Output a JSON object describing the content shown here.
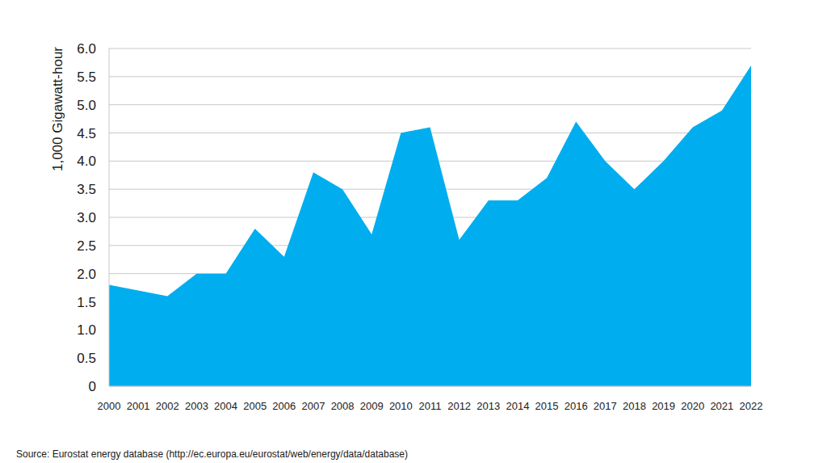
{
  "chart_data": {
    "type": "area",
    "y_label": "1,000 Gigawatt-hour",
    "source": "Source: Eurostat energy database (http://ec.europa.eu/eurostat/web/energy/data/database)",
    "categories": [
      "2000",
      "2001",
      "2002",
      "2003",
      "2004",
      "2005",
      "2006",
      "2007",
      "2008",
      "2009",
      "2010",
      "2011",
      "2012",
      "2013",
      "2014",
      "2015",
      "2016",
      "2017",
      "2018",
      "2019",
      "2020",
      "2021",
      "2022"
    ],
    "values": [
      1.8,
      1.7,
      1.6,
      2.0,
      2.0,
      2.8,
      2.3,
      3.8,
      3.5,
      2.7,
      4.5,
      4.6,
      2.6,
      3.3,
      3.3,
      3.7,
      4.7,
      4.0,
      3.5,
      4.0,
      4.6,
      4.9,
      5.7
    ],
    "color": "#00aeef",
    "ylim": [
      0,
      6
    ],
    "yticks": [
      0,
      0.5,
      {
        "value": 1,
        "label": "1.0"
      },
      1.5,
      {
        "value": 2,
        "label": "2.0"
      },
      2.5,
      {
        "value": 3,
        "label": "3.0"
      },
      3.5,
      {
        "value": 4,
        "label": "4.0"
      },
      4.5,
      {
        "value": 5,
        "label": "5.0"
      },
      5.5,
      {
        "value": 6,
        "label": "6.0"
      }
    ],
    "grid": true
  }
}
